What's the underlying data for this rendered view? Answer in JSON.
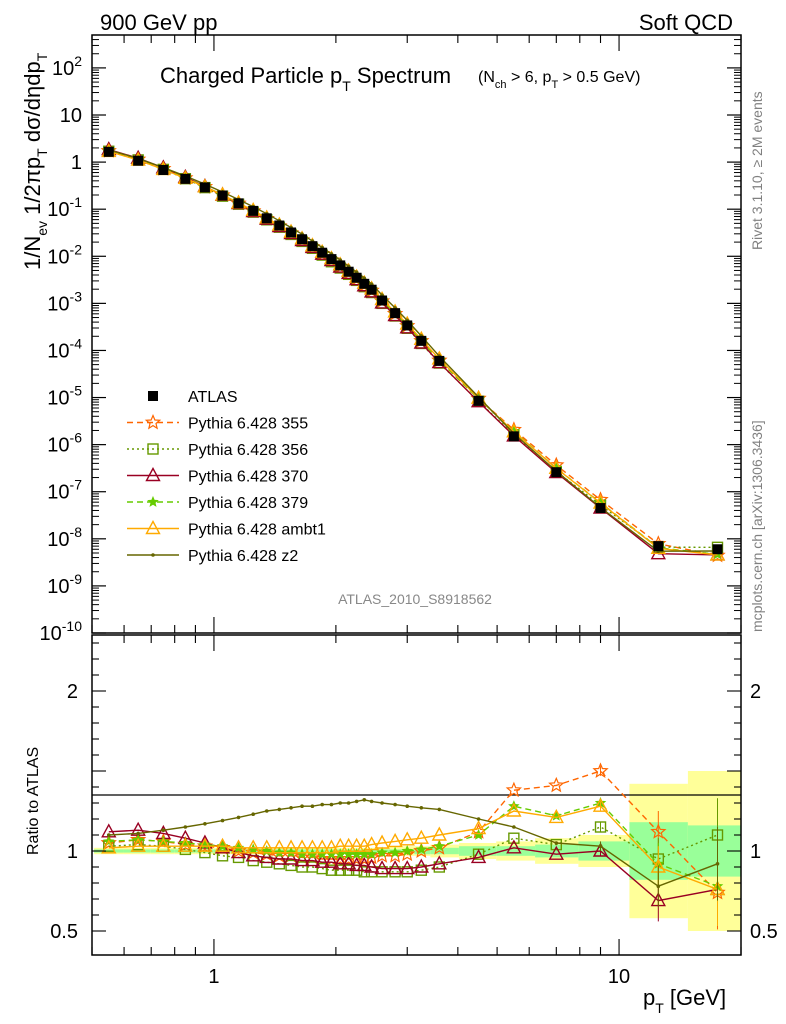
{
  "header": {
    "left": "900 GeV pp",
    "right": "Soft QCD"
  },
  "side_labels": {
    "rivet": "Rivet 3.1.10, ≥ 2M events",
    "mcplots": "mcplots.cern.ch [arXiv:1306.3436]"
  },
  "watermark": "ATLAS_2010_S8918562",
  "colors": {
    "atlas": "#000000",
    "p355": "#ff6600",
    "p356": "#669900",
    "p370": "#990022",
    "p379": "#66cc00",
    "ambt1": "#ffaa00",
    "z2": "#666600",
    "band_inner": "#99ff99",
    "band_outer": "#ffff99"
  },
  "chart_data": [
    {
      "panel": "main",
      "type": "line",
      "title": "Charged Particle p",
      "title_sub": "T",
      "title_rest": " Spectrum",
      "title_cut": "(N_ch > 6, p_T > 0.5 GeV)",
      "ylabel": "1/N_ev 1/2πp_T dσ/dηdp_T",
      "xlabel": "p_T [GeV]",
      "xscale": "log",
      "yscale": "log",
      "xlim": [
        0.5,
        20
      ],
      "ylim": [
        1e-10,
        500
      ],
      "y_ticks": [
        "10^{-10}",
        "10^{-9}",
        "10^{-8}",
        "10^{-7}",
        "10^{-6}",
        "10^{-5}",
        "10^{-4}",
        "10^{-3}",
        "10^{-2}",
        "10^{-1}",
        "1",
        "10",
        "10^{2}"
      ],
      "x_ticks": [
        "1",
        "10"
      ],
      "legend_position": "left-middle",
      "x": [
        0.55,
        0.65,
        0.75,
        0.85,
        0.95,
        1.05,
        1.15,
        1.25,
        1.35,
        1.45,
        1.55,
        1.65,
        1.75,
        1.85,
        1.95,
        2.05,
        2.15,
        2.25,
        2.35,
        2.45,
        2.6,
        2.8,
        3.0,
        3.25,
        3.6,
        4.5,
        5.5,
        7.0,
        9.0,
        12.5,
        17.5
      ],
      "atlas": [
        1.65,
        1.07,
        0.68,
        0.44,
        0.29,
        0.195,
        0.133,
        0.092,
        0.064,
        0.045,
        0.032,
        0.023,
        0.0164,
        0.0119,
        0.0087,
        0.0064,
        0.0047,
        0.0035,
        0.0026,
        0.00195,
        0.00115,
        0.00062,
        0.00034,
        0.00016,
        6e-05,
        8.5e-06,
        1.5e-06,
        2.6e-07,
        4.5e-08,
        7e-09,
        6e-09
      ],
      "series": [
        {
          "name": "ATLAS",
          "key": "atlas",
          "style": "data"
        },
        {
          "name": "Pythia 6.428 355",
          "key": "p355",
          "style": "dashed",
          "marker": "star",
          "ratio": [
            1.05,
            1.07,
            1.06,
            1.04,
            1.03,
            1.02,
            1.0,
            0.99,
            0.98,
            0.97,
            0.97,
            0.96,
            0.96,
            0.95,
            0.95,
            0.95,
            0.95,
            0.95,
            0.95,
            0.96,
            0.97,
            0.97,
            0.98,
            1.0,
            1.02,
            1.12,
            1.38,
            1.41,
            1.5,
            1.12,
            0.74
          ]
        },
        {
          "name": "Pythia 6.428 356",
          "key": "p356",
          "style": "dotted",
          "marker": "square",
          "ratio": [
            1.03,
            1.04,
            1.03,
            1.01,
            0.99,
            0.97,
            0.96,
            0.94,
            0.93,
            0.92,
            0.91,
            0.9,
            0.9,
            0.89,
            0.88,
            0.88,
            0.88,
            0.88,
            0.87,
            0.87,
            0.87,
            0.87,
            0.87,
            0.88,
            0.9,
            0.98,
            1.08,
            1.04,
            1.15,
            0.95,
            1.1
          ]
        },
        {
          "name": "Pythia 6.428 370",
          "key": "p370",
          "style": "solid",
          "marker": "triangle",
          "ratio": [
            1.12,
            1.13,
            1.11,
            1.08,
            1.05,
            1.02,
            0.99,
            0.97,
            0.96,
            0.95,
            0.95,
            0.94,
            0.94,
            0.93,
            0.93,
            0.92,
            0.92,
            0.91,
            0.91,
            0.9,
            0.89,
            0.89,
            0.89,
            0.9,
            0.92,
            0.96,
            1.02,
            0.98,
            1.0,
            0.69,
            0.76
          ]
        },
        {
          "name": "Pythia 6.428 379",
          "key": "p379",
          "style": "dashed",
          "marker": "smallstar",
          "ratio": [
            1.06,
            1.07,
            1.06,
            1.05,
            1.04,
            1.03,
            1.02,
            1.01,
            1.0,
            0.99,
            0.99,
            0.98,
            0.98,
            0.98,
            0.98,
            0.98,
            0.98,
            0.98,
            0.98,
            0.98,
            0.99,
            0.99,
            1.0,
            1.01,
            1.03,
            1.1,
            1.28,
            1.22,
            1.3,
            0.92,
            0.78
          ]
        },
        {
          "name": "Pythia 6.428 ambt1",
          "key": "ambt1",
          "style": "solid",
          "marker": "triangle",
          "ratio": [
            1.02,
            1.03,
            1.03,
            1.03,
            1.03,
            1.03,
            1.02,
            1.02,
            1.02,
            1.02,
            1.02,
            1.02,
            1.02,
            1.02,
            1.02,
            1.03,
            1.03,
            1.03,
            1.03,
            1.04,
            1.05,
            1.06,
            1.07,
            1.08,
            1.1,
            1.14,
            1.25,
            1.21,
            1.28,
            0.9,
            0.76
          ]
        },
        {
          "name": "Pythia 6.428 z2",
          "key": "z2",
          "style": "solid",
          "marker": "dot",
          "ratio": [
            1.1,
            1.11,
            1.13,
            1.15,
            1.17,
            1.19,
            1.21,
            1.23,
            1.25,
            1.26,
            1.27,
            1.28,
            1.28,
            1.29,
            1.29,
            1.3,
            1.3,
            1.31,
            1.32,
            1.31,
            1.3,
            1.29,
            1.28,
            1.27,
            1.26,
            1.2,
            1.15,
            1.05,
            1.03,
            0.78,
            0.92
          ]
        }
      ]
    },
    {
      "panel": "ratio",
      "type": "line",
      "ylabel": "Ratio to ATLAS",
      "ylim": [
        0.35,
        2.35
      ],
      "y_ticks": [
        "0.5",
        "1",
        "2"
      ],
      "x_ticks": [
        "1",
        "10"
      ],
      "band_inner": [
        0.01,
        0.01,
        0.01,
        0.01,
        0.01,
        0.01,
        0.01,
        0.01,
        0.01,
        0.01,
        0.01,
        0.01,
        0.01,
        0.01,
        0.01,
        0.01,
        0.01,
        0.01,
        0.01,
        0.01,
        0.01,
        0.01,
        0.01,
        0.02,
        0.02,
        0.03,
        0.03,
        0.04,
        0.06,
        0.18,
        0.16
      ],
      "band_outer": [
        0.02,
        0.02,
        0.02,
        0.02,
        0.02,
        0.02,
        0.02,
        0.02,
        0.02,
        0.02,
        0.02,
        0.02,
        0.02,
        0.02,
        0.02,
        0.02,
        0.02,
        0.02,
        0.02,
        0.02,
        0.02,
        0.03,
        0.03,
        0.03,
        0.04,
        0.05,
        0.06,
        0.08,
        0.1,
        0.42,
        0.5
      ]
    }
  ]
}
